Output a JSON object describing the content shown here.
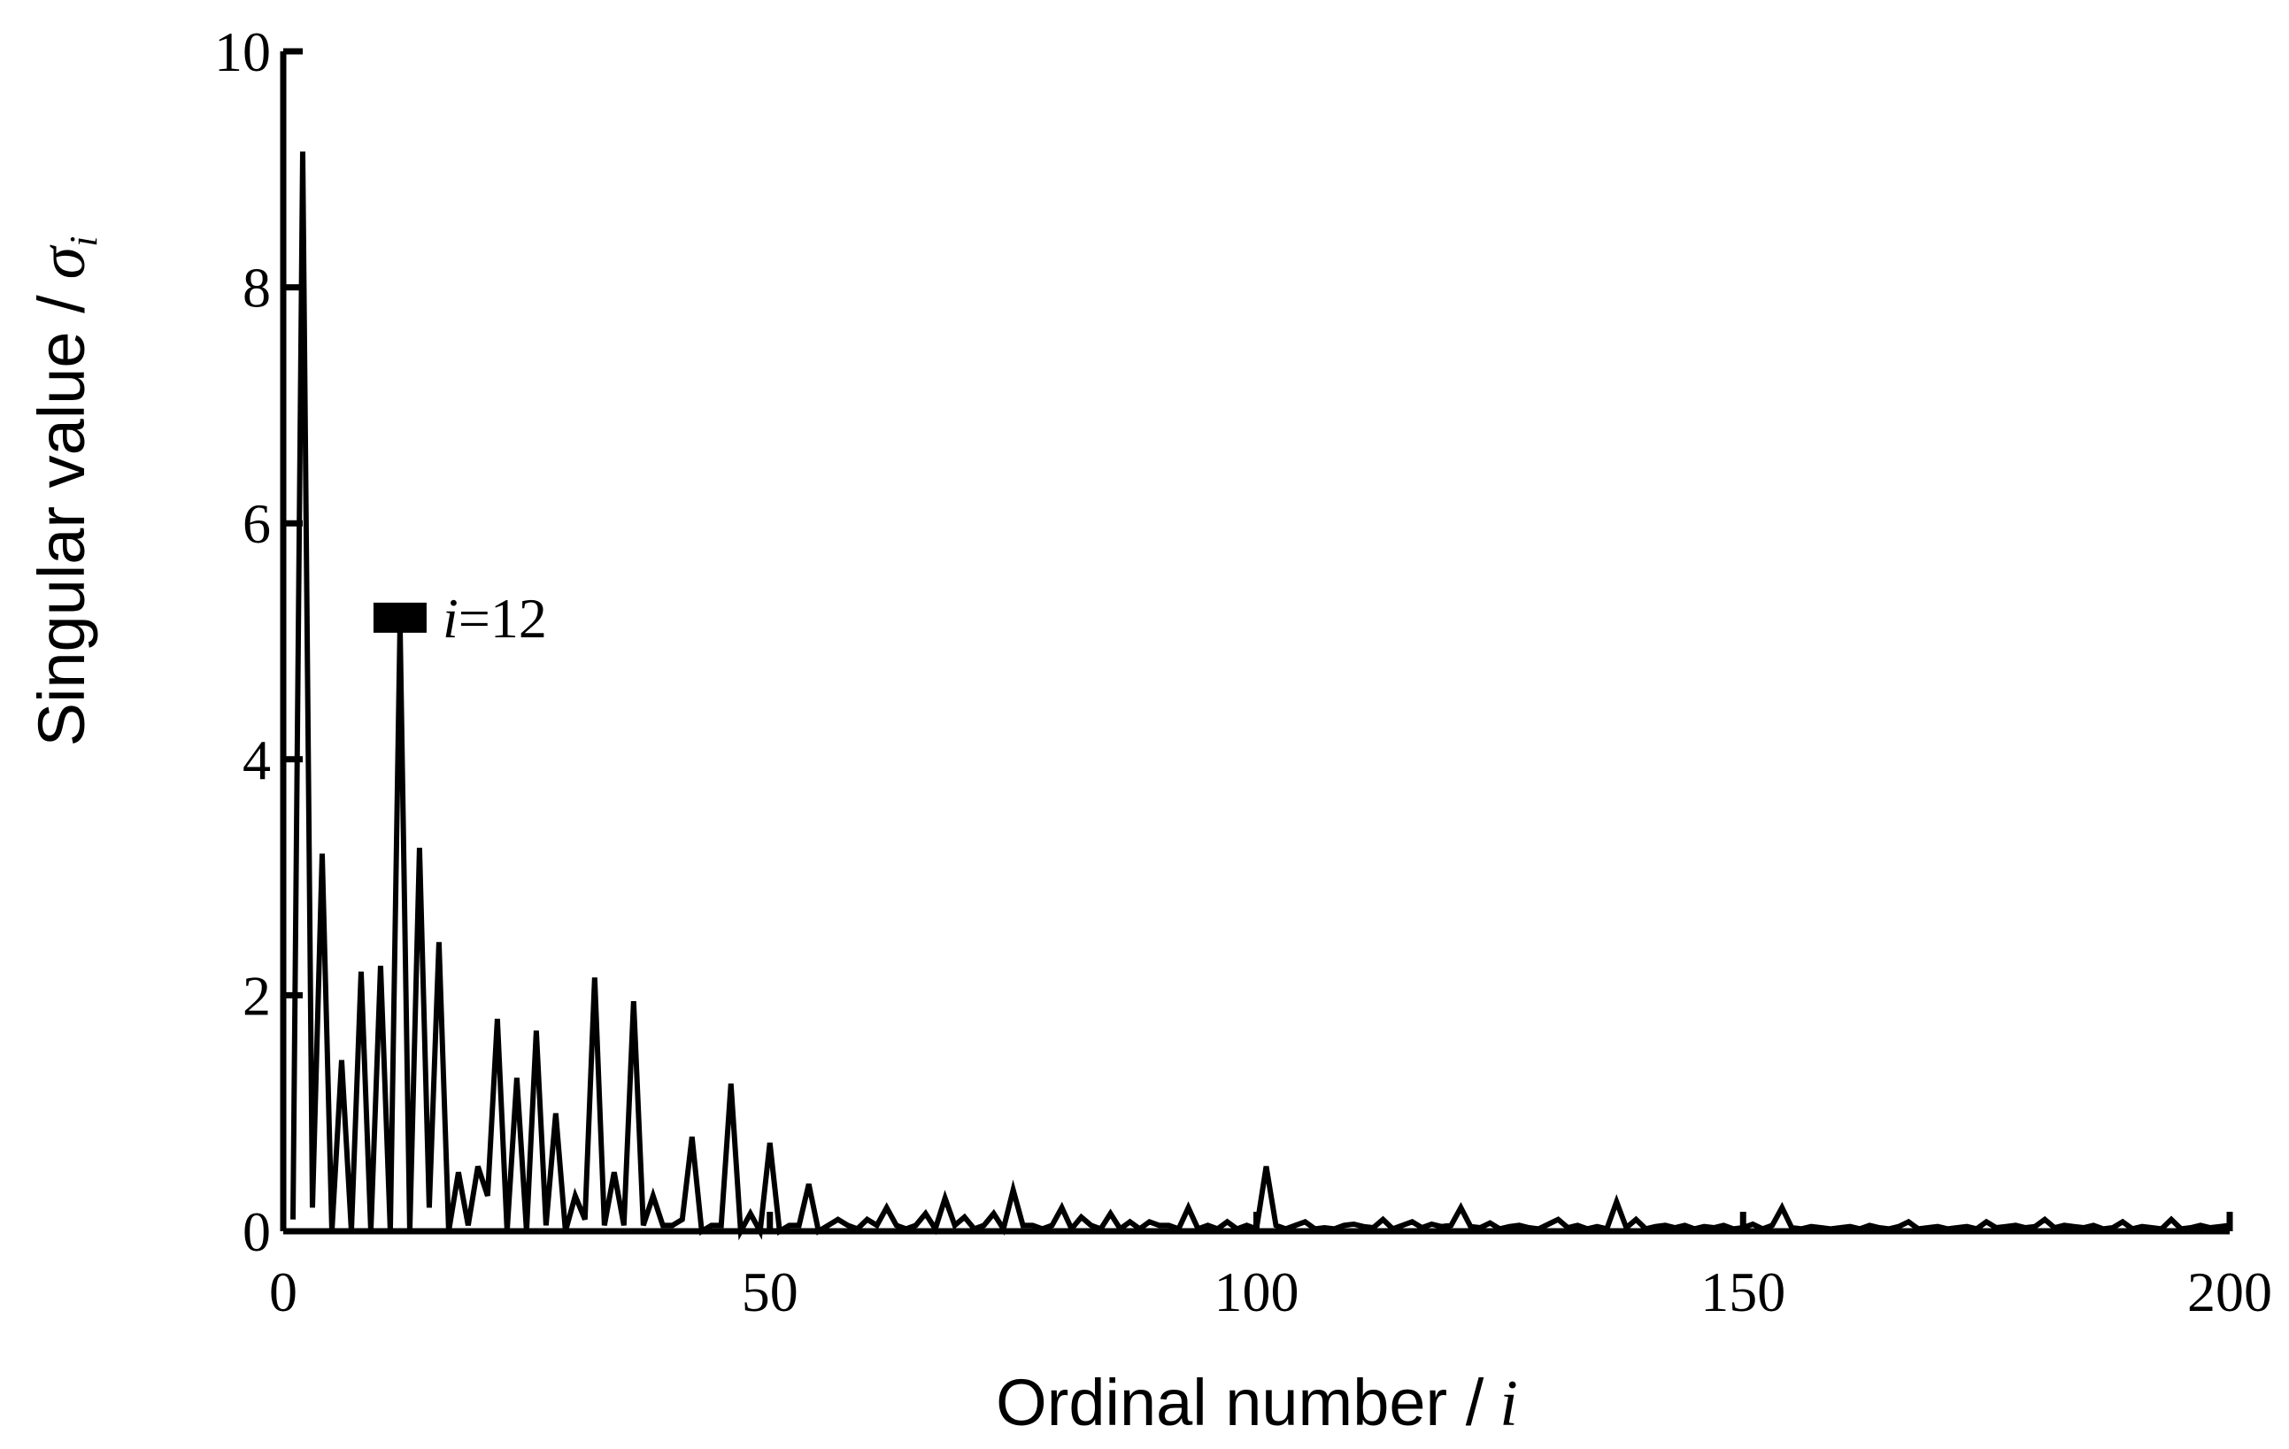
{
  "chart_data": {
    "type": "line",
    "xlabel": "Ordinal number /",
    "xlabel_symbol": "i",
    "ylabel": "Singular value /",
    "ylabel_symbol": "σ",
    "ylabel_sub": "i",
    "annotation": {
      "symbol": "i",
      "text": "=12",
      "x": 12,
      "y": 5.2
    },
    "xlim": [
      0,
      200
    ],
    "ylim": [
      0,
      10
    ],
    "xticks": [
      0,
      50,
      100,
      150,
      200
    ],
    "yticks": [
      0,
      2,
      4,
      6,
      8,
      10
    ],
    "x": [
      1,
      2,
      3,
      4,
      5,
      6,
      7,
      8,
      9,
      10,
      11,
      12,
      13,
      14,
      15,
      16,
      17,
      18,
      19,
      20,
      21,
      22,
      23,
      24,
      25,
      26,
      27,
      28,
      29,
      30,
      31,
      32,
      33,
      34,
      35,
      36,
      37,
      38,
      39,
      40,
      41,
      42,
      43,
      44,
      45,
      46,
      47,
      48,
      49,
      50,
      51,
      52,
      53,
      54,
      55,
      56,
      57,
      58,
      59,
      60,
      61,
      62,
      63,
      64,
      65,
      66,
      67,
      68,
      69,
      70,
      71,
      72,
      73,
      74,
      75,
      76,
      77,
      78,
      79,
      80,
      81,
      82,
      83,
      84,
      85,
      86,
      87,
      88,
      89,
      90,
      91,
      92,
      93,
      94,
      95,
      96,
      97,
      98,
      99,
      100,
      101,
      102,
      103,
      104,
      105,
      106,
      107,
      108,
      109,
      110,
      111,
      112,
      113,
      114,
      115,
      116,
      117,
      118,
      119,
      120,
      121,
      122,
      123,
      124,
      125,
      126,
      127,
      128,
      129,
      130,
      131,
      132,
      133,
      134,
      135,
      136,
      137,
      138,
      139,
      140,
      141,
      142,
      143,
      144,
      145,
      146,
      147,
      148,
      149,
      150,
      151,
      152,
      153,
      154,
      155,
      156,
      157,
      158,
      159,
      160,
      161,
      162,
      163,
      164,
      165,
      166,
      167,
      168,
      169,
      170,
      171,
      172,
      173,
      174,
      175,
      176,
      177,
      178,
      179,
      180,
      181,
      182,
      183,
      184,
      185,
      186,
      187,
      188,
      189,
      190,
      191,
      192,
      193,
      194,
      195,
      196,
      197,
      198,
      199,
      200
    ],
    "series": [
      {
        "color": "#000000",
        "values": [
          0.1,
          9.15,
          0.2,
          3.2,
          0,
          1.45,
          0,
          2.2,
          0,
          2.25,
          0,
          5.15,
          0,
          3.25,
          0.2,
          2.45,
          0,
          0.5,
          0.05,
          0.55,
          0.3,
          1.8,
          0,
          1.3,
          0,
          1.7,
          0.05,
          1.0,
          0,
          0.3,
          0.1,
          2.15,
          0.05,
          0.5,
          0.05,
          1.95,
          0.05,
          0.3,
          0.05,
          0.05,
          0.1,
          0.8,
          0,
          0.05,
          0.05,
          1.25,
          0,
          0.15,
          0,
          0.75,
          0,
          0.05,
          0.05,
          0.4,
          0,
          0.05,
          0.1,
          0.05,
          0.02,
          0.1,
          0.05,
          0.2,
          0.05,
          0.02,
          0.05,
          0.15,
          0.02,
          0.28,
          0.05,
          0.12,
          0.02,
          0.05,
          0.15,
          0.02,
          0.35,
          0.05,
          0.05,
          0.02,
          0.05,
          0.2,
          0.02,
          0.12,
          0.05,
          0.02,
          0.15,
          0.02,
          0.08,
          0.02,
          0.08,
          0.05,
          0.05,
          0.02,
          0.2,
          0.02,
          0.05,
          0.02,
          0.08,
          0.02,
          0.05,
          0.02,
          0.55,
          0.05,
          0.02,
          0.05,
          0.08,
          0.02,
          0.03,
          0.02,
          0.05,
          0.06,
          0.04,
          0.03,
          0.1,
          0.02,
          0.05,
          0.08,
          0.03,
          0.06,
          0.04,
          0.05,
          0.2,
          0.04,
          0.03,
          0.07,
          0.02,
          0.04,
          0.05,
          0.03,
          0.02,
          0.06,
          0.1,
          0.03,
          0.05,
          0.02,
          0.04,
          0.02,
          0.25,
          0.03,
          0.1,
          0.02,
          0.04,
          0.05,
          0.03,
          0.05,
          0.02,
          0.04,
          0.03,
          0.05,
          0.02,
          0.03,
          0.06,
          0.02,
          0.05,
          0.2,
          0.03,
          0.02,
          0.04,
          0.03,
          0.02,
          0.03,
          0.04,
          0.02,
          0.05,
          0.03,
          0.02,
          0.04,
          0.08,
          0.02,
          0.03,
          0.04,
          0.02,
          0.03,
          0.04,
          0.02,
          0.08,
          0.03,
          0.04,
          0.05,
          0.03,
          0.04,
          0.1,
          0.03,
          0.05,
          0.04,
          0.03,
          0.05,
          0.02,
          0.03,
          0.08,
          0.02,
          0.04,
          0.03,
          0.02,
          0.1,
          0.02,
          0.03,
          0.05,
          0.03,
          0.04,
          0.05
        ]
      }
    ]
  }
}
